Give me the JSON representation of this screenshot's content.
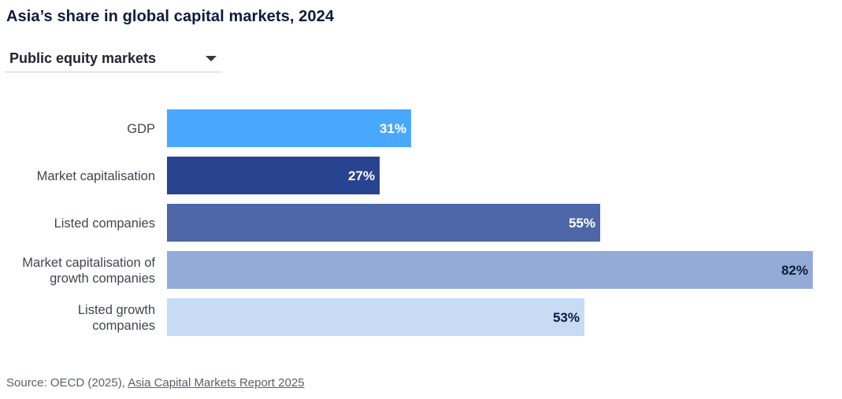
{
  "chart_data": {
    "type": "bar",
    "orientation": "horizontal",
    "title": "Asia’s share in global capital markets, 2024",
    "categories": [
      [
        "GDP"
      ],
      [
        "Market capitalisation"
      ],
      [
        "Listed companies"
      ],
      [
        "Market capitalisation of",
        "growth companies"
      ],
      [
        "Listed growth",
        "companies"
      ]
    ],
    "values": [
      31,
      27,
      55,
      82,
      53
    ],
    "value_labels": [
      "31%",
      "27%",
      "55%",
      "82%",
      "53%"
    ],
    "bar_colors": [
      "#4aa8fc",
      "#28438f",
      "#4c66a8",
      "#94aad6",
      "#c7dbf5"
    ],
    "label_colors": [
      "#ffffff",
      "#ffffff",
      "#ffffff",
      "#0d1b3e",
      "#0d1b3e"
    ],
    "xlim": [
      0,
      100
    ],
    "unit": "%",
    "grid": false,
    "legend": "none"
  },
  "selector": {
    "label": "Public equity markets"
  },
  "source": {
    "prefix": "Source: OECD (2025), ",
    "link_text": "Asia Capital Markets Report 2025"
  }
}
